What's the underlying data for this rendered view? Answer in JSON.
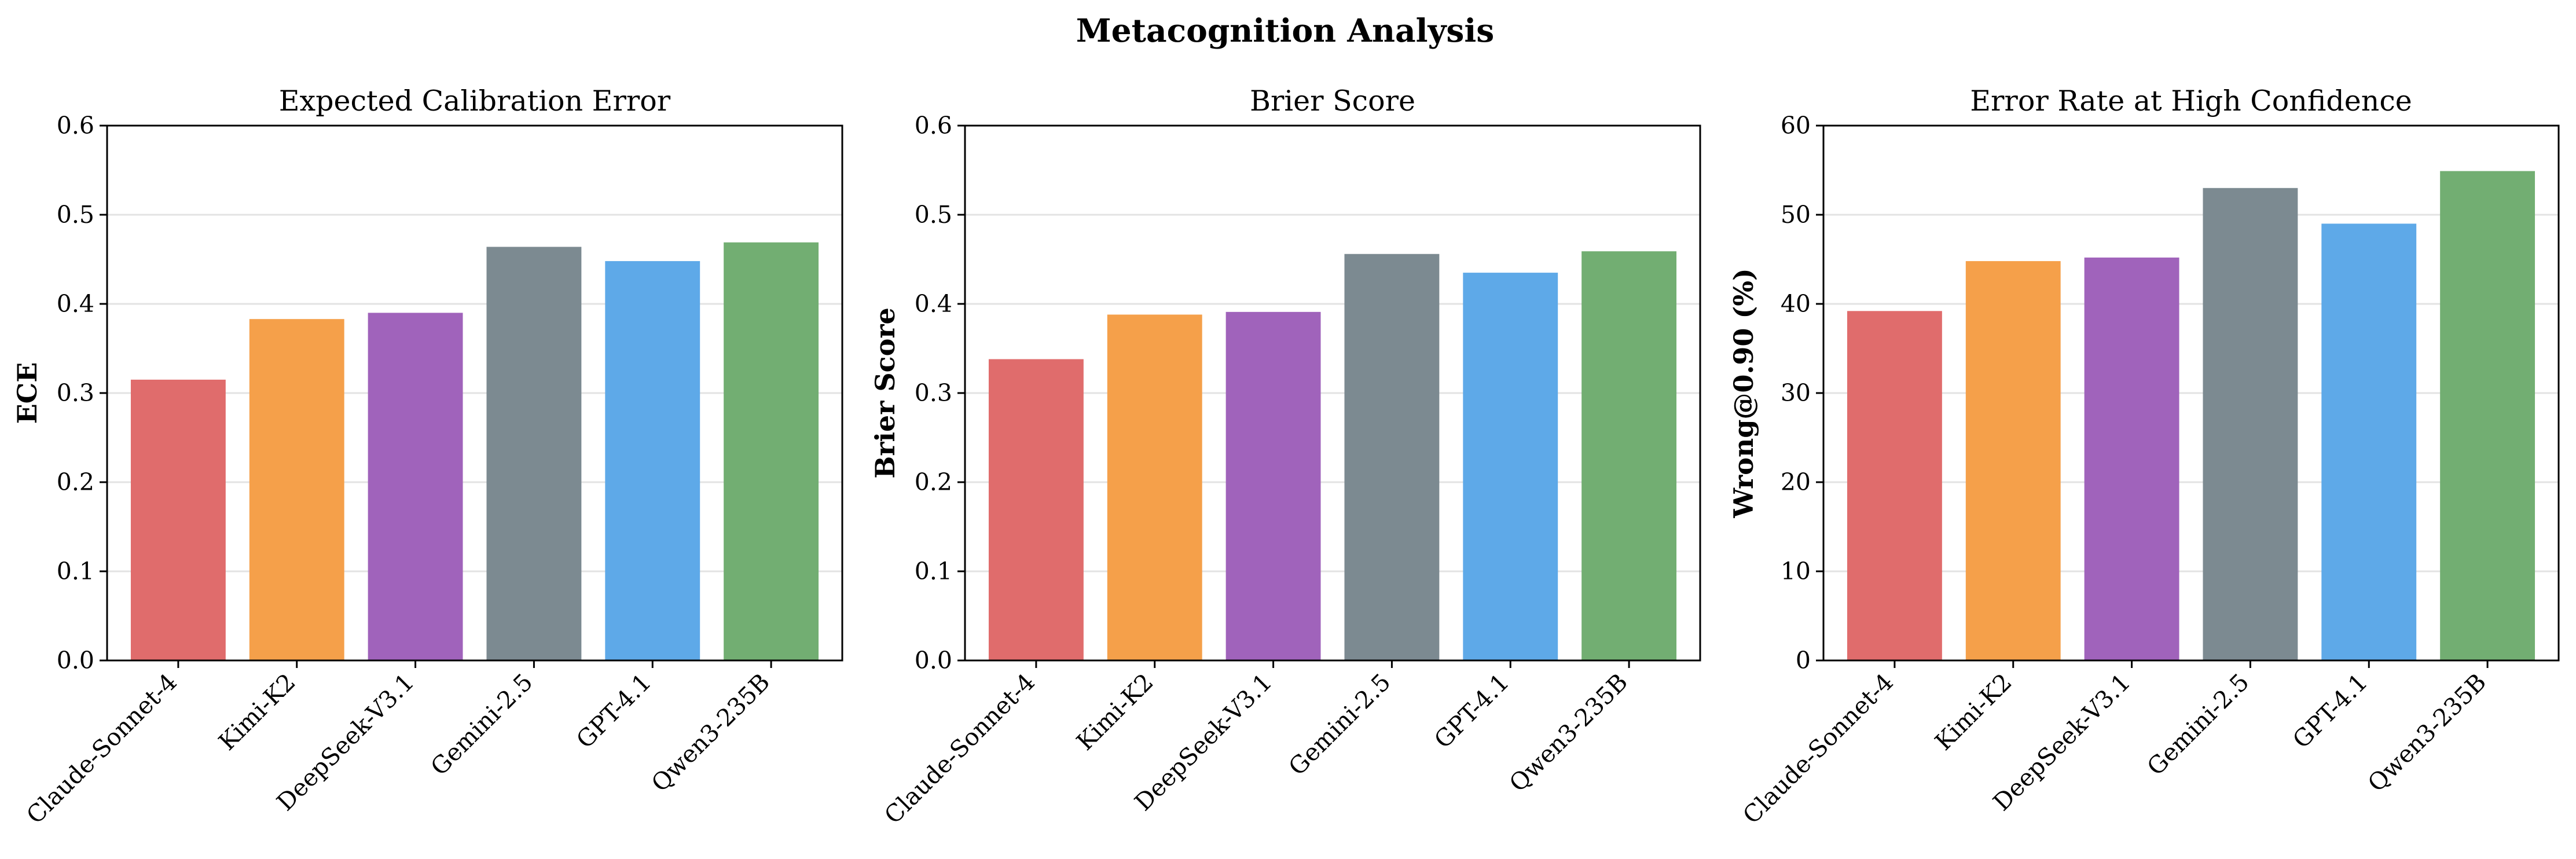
{
  "suptitle": "Metacognition Analysis",
  "chart_data": [
    {
      "type": "bar",
      "title": "Expected Calibration Error",
      "xlabel": "",
      "ylabel": "ECE",
      "ylim": [
        0,
        0.6
      ],
      "yticks": [
        "0.0",
        "0.1",
        "0.2",
        "0.3",
        "0.4",
        "0.5",
        "0.6"
      ],
      "categories": [
        "Claude-Sonnet-4",
        "Kimi-K2",
        "DeepSeek-V3.1",
        "Gemini-2.5",
        "GPT-4.1",
        "Qwen3-235B"
      ],
      "values": [
        0.315,
        0.383,
        0.39,
        0.464,
        0.448,
        0.469
      ],
      "colors": [
        "#e06c6c",
        "#f5a04a",
        "#a063bb",
        "#7c8a91",
        "#5ea9e8",
        "#72ae72"
      ],
      "grid": "y"
    },
    {
      "type": "bar",
      "title": "Brier Score",
      "xlabel": "",
      "ylabel": "Brier Score",
      "ylim": [
        0,
        0.6
      ],
      "yticks": [
        "0.0",
        "0.1",
        "0.2",
        "0.3",
        "0.4",
        "0.5",
        "0.6"
      ],
      "categories": [
        "Claude-Sonnet-4",
        "Kimi-K2",
        "DeepSeek-V3.1",
        "Gemini-2.5",
        "GPT-4.1",
        "Qwen3-235B"
      ],
      "values": [
        0.338,
        0.388,
        0.391,
        0.456,
        0.435,
        0.459
      ],
      "colors": [
        "#e06c6c",
        "#f5a04a",
        "#a063bb",
        "#7c8a91",
        "#5ea9e8",
        "#72ae72"
      ],
      "grid": "y"
    },
    {
      "type": "bar",
      "title": "Error Rate at High Confidence",
      "xlabel": "",
      "ylabel": "Wrong@0.90 (%)",
      "ylim": [
        0,
        60
      ],
      "yticks": [
        "0",
        "10",
        "20",
        "30",
        "40",
        "50",
        "60"
      ],
      "categories": [
        "Claude-Sonnet-4",
        "Kimi-K2",
        "DeepSeek-V3.1",
        "Gemini-2.5",
        "GPT-4.1",
        "Qwen3-235B"
      ],
      "values": [
        39.2,
        44.8,
        45.2,
        53.0,
        49.0,
        54.9
      ],
      "colors": [
        "#e06c6c",
        "#f5a04a",
        "#a063bb",
        "#7c8a91",
        "#5ea9e8",
        "#72ae72"
      ],
      "grid": "y"
    }
  ]
}
